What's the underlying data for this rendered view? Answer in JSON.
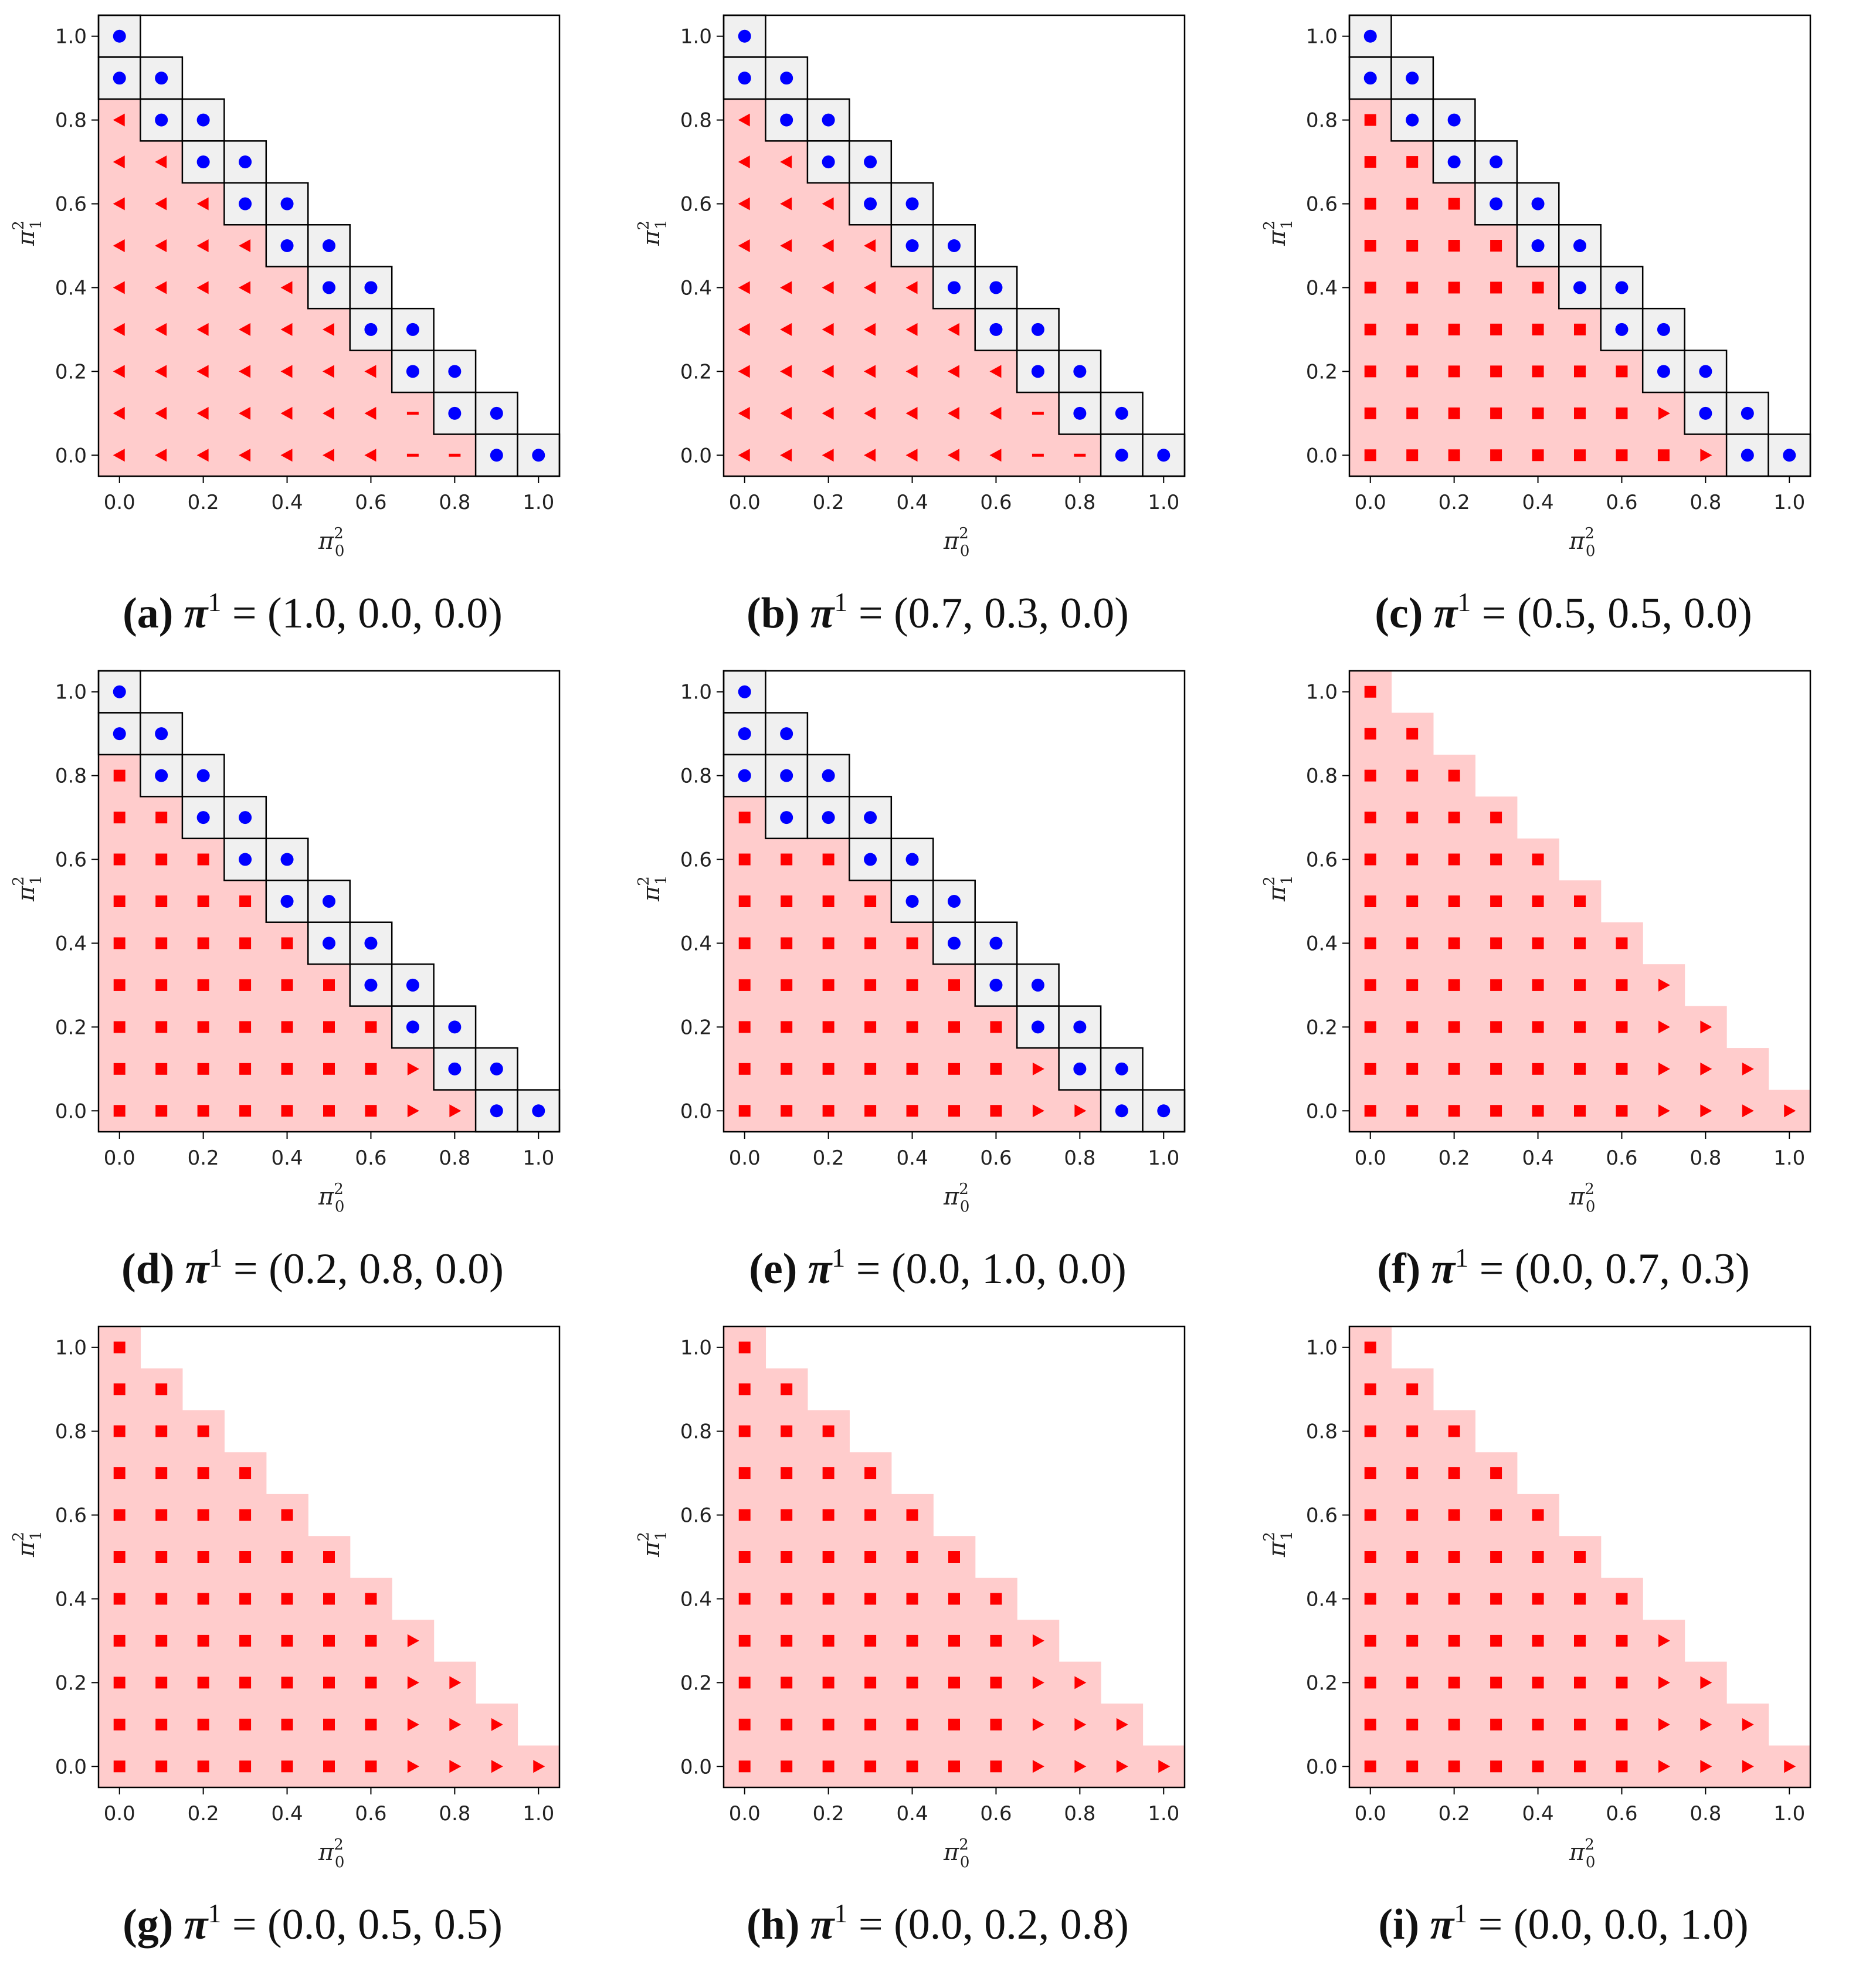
{
  "axis": {
    "x_ticks": [
      "0.0",
      "0.2",
      "0.4",
      "0.6",
      "0.8",
      "1.0"
    ],
    "y_ticks": [
      "0.0",
      "0.2",
      "0.4",
      "0.6",
      "0.8",
      "1.0"
    ],
    "xlabel_base": "π",
    "xlabel_sup": "2",
    "xlabel_sub": "0",
    "ylabel_base": "π",
    "ylabel_sup": "2",
    "ylabel_sub": "1"
  },
  "colors": {
    "red_region": "#ffcccc",
    "red_marker": "#ff0000",
    "blue_marker": "#0000ff",
    "blue_cell": "#f0f0f0",
    "cell_border": "#000000"
  },
  "legend_markers": {
    "L": "red left-pointing triangle",
    "D": "red short dash",
    "S": "red square",
    "R": "red right-pointing triangle",
    "B": "blue circle"
  },
  "chart_data": [
    {
      "id": "a",
      "letter": "(a)",
      "pi_label": "π",
      "pi_sup": "1",
      "value_text": "= (1.0, 0.0, 0.0)",
      "type": "scatter",
      "xlim": [
        -0.05,
        1.05
      ],
      "ylim": [
        -0.05,
        1.05
      ],
      "grid_step": 0.1,
      "rows": [
        "B",
        "BB",
        "LBB",
        "LLBB",
        "LLLBB",
        "LLLLBB",
        "LLLLLBB",
        "LLLLLLBB",
        "LLLLLLLBB",
        "LLLLLLLDBB",
        "LLLLLLLDDBB"
      ]
    },
    {
      "id": "b",
      "letter": "(b)",
      "pi_label": "π",
      "pi_sup": "1",
      "value_text": "= (0.7, 0.3, 0.0)",
      "type": "scatter",
      "xlim": [
        -0.05,
        1.05
      ],
      "ylim": [
        -0.05,
        1.05
      ],
      "grid_step": 0.1,
      "rows": [
        "B",
        "BB",
        "LBB",
        "LLBB",
        "LLLBB",
        "LLLLBB",
        "LLLLLBB",
        "LLLLLLBB",
        "LLLLLLLBB",
        "LLLLLLLDBB",
        "LLLLLLLDDBB"
      ]
    },
    {
      "id": "c",
      "letter": "(c)",
      "pi_label": "π",
      "pi_sup": "1",
      "value_text": "= (0.5, 0.5, 0.0)",
      "type": "scatter",
      "xlim": [
        -0.05,
        1.05
      ],
      "ylim": [
        -0.05,
        1.05
      ],
      "grid_step": 0.1,
      "rows": [
        "B",
        "BB",
        "SBB",
        "SSBB",
        "SSSBB",
        "SSSSBB",
        "SSSSSBB",
        "SSSSSSBB",
        "SSSSSSSBB",
        "SSSSSSSRBB",
        "SSSSSSSSRBB"
      ]
    },
    {
      "id": "d",
      "letter": "(d)",
      "pi_label": "π",
      "pi_sup": "1",
      "value_text": "= (0.2, 0.8, 0.0)",
      "type": "scatter",
      "xlim": [
        -0.05,
        1.05
      ],
      "ylim": [
        -0.05,
        1.05
      ],
      "grid_step": 0.1,
      "rows": [
        "B",
        "BB",
        "SBB",
        "SSBB",
        "SSSBB",
        "SSSSBB",
        "SSSSSBB",
        "SSSSSSBB",
        "SSSSSSSBB",
        "SSSSSSSRBB",
        "SSSSSSSRRBB"
      ]
    },
    {
      "id": "e",
      "letter": "(e)",
      "pi_label": "π",
      "pi_sup": "1",
      "value_text": "= (0.0, 1.0, 0.0)",
      "type": "scatter",
      "xlim": [
        -0.05,
        1.05
      ],
      "ylim": [
        -0.05,
        1.05
      ],
      "grid_step": 0.1,
      "rows": [
        "B",
        "BB",
        "BBB",
        "SBBB",
        "SSSBB",
        "SSSSBB",
        "SSSSSBB",
        "SSSSSSBB",
        "SSSSSSSBB",
        "SSSSSSSRBB",
        "SSSSSSSRRBB"
      ]
    },
    {
      "id": "f",
      "letter": "(f)",
      "pi_label": "π",
      "pi_sup": "1",
      "value_text": "= (0.0, 0.7, 0.3)",
      "type": "scatter",
      "xlim": [
        -0.05,
        1.05
      ],
      "ylim": [
        -0.05,
        1.05
      ],
      "grid_step": 0.1,
      "rows": [
        "S",
        "SS",
        "SSS",
        "SSSS",
        "SSSSS",
        "SSSSSS",
        "SSSSSSS",
        "SSSSSSSR",
        "SSSSSSSRR",
        "SSSSSSSRRR",
        "SSSSSSSRRRR"
      ]
    },
    {
      "id": "g",
      "letter": "(g)",
      "pi_label": "π",
      "pi_sup": "1",
      "value_text": "= (0.0, 0.5, 0.5)",
      "type": "scatter",
      "xlim": [
        -0.05,
        1.05
      ],
      "ylim": [
        -0.05,
        1.05
      ],
      "grid_step": 0.1,
      "rows": [
        "S",
        "SS",
        "SSS",
        "SSSS",
        "SSSSS",
        "SSSSSS",
        "SSSSSSS",
        "SSSSSSSR",
        "SSSSSSSRR",
        "SSSSSSSRRR",
        "SSSSSSSRRRR"
      ]
    },
    {
      "id": "h",
      "letter": "(h)",
      "pi_label": "π",
      "pi_sup": "1",
      "value_text": "= (0.0, 0.2, 0.8)",
      "type": "scatter",
      "xlim": [
        -0.05,
        1.05
      ],
      "ylim": [
        -0.05,
        1.05
      ],
      "grid_step": 0.1,
      "rows": [
        "S",
        "SS",
        "SSS",
        "SSSS",
        "SSSSS",
        "SSSSSS",
        "SSSSSSS",
        "SSSSSSSR",
        "SSSSSSSRR",
        "SSSSSSSRRR",
        "SSSSSSSRRRR"
      ]
    },
    {
      "id": "i",
      "letter": "(i)",
      "pi_label": "π",
      "pi_sup": "1",
      "value_text": "= (0.0, 0.0, 1.0)",
      "type": "scatter",
      "xlim": [
        -0.05,
        1.05
      ],
      "ylim": [
        -0.05,
        1.05
      ],
      "grid_step": 0.1,
      "rows": [
        "S",
        "SS",
        "SSS",
        "SSSS",
        "SSSSS",
        "SSSSSS",
        "SSSSSSS",
        "SSSSSSSR",
        "SSSSSSSRR",
        "SSSSSSSRRR",
        "SSSSSSSRRRR"
      ]
    }
  ]
}
